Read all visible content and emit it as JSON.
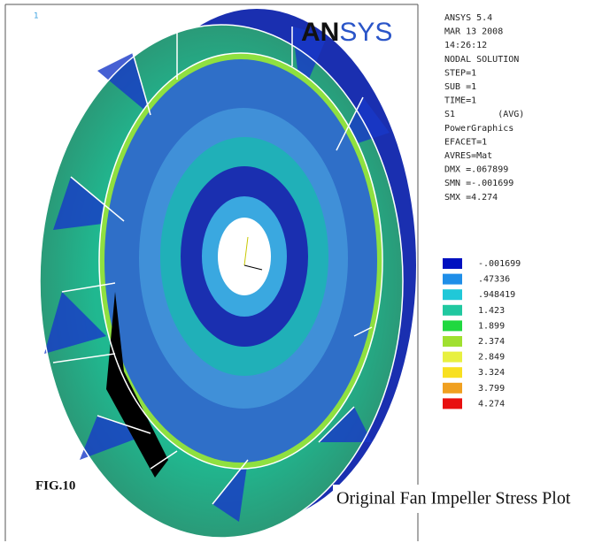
{
  "corner_label": "1",
  "logo": {
    "part1": "AN",
    "part2": "SYS"
  },
  "info_lines": [
    "ANSYS 5.4",
    "MAR 13 2008",
    "14:26:12",
    "NODAL SOLUTION",
    "STEP=1",
    "SUB =1",
    "TIME=1",
    "S1        (AVG)",
    "PowerGraphics",
    "EFACET=1",
    "AVRES=Mat",
    "DMX =.067899",
    "SMN =-.001699",
    "SMX =4.274"
  ],
  "legend": [
    {
      "label": "-.001699",
      "color": "#0010c0"
    },
    {
      "label": ".47336",
      "color": "#1f8ee8"
    },
    {
      "label": ".948419",
      "color": "#20c8d8"
    },
    {
      "label": "1.423",
      "color": "#20c8a0"
    },
    {
      "label": "1.899",
      "color": "#20d840"
    },
    {
      "label": "2.374",
      "color": "#a0e030"
    },
    {
      "label": "2.849",
      "color": "#e8f040"
    },
    {
      "label": "3.324",
      "color": "#f8e020"
    },
    {
      "label": "3.799",
      "color": "#f0a020"
    },
    {
      "label": "4.274",
      "color": "#e81010"
    }
  ],
  "figure_label": "FIG.10",
  "caption": "Original Fan Impeller Stress Plot"
}
